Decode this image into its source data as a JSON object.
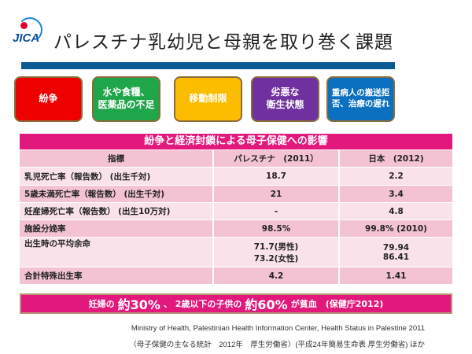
{
  "logo": "JICA",
  "title": "パレスチナ乳幼児と母親を取り巻く課題",
  "issues": [
    {
      "label": "紛争",
      "color": "#ee0000"
    },
    {
      "label": "水や食糧、\n医薬品の不足",
      "color": "#1fa64a"
    },
    {
      "label": "移動制限",
      "color": "#fcbd00"
    },
    {
      "label": "劣悪な\n衛生状態",
      "color": "#7030a0"
    },
    {
      "label": "重病人の搬送拒\n否、治療の遅れ",
      "color": "#0b70c0"
    }
  ],
  "table": {
    "title": "紛争と経済封鎖による母子保健への影響",
    "headers": [
      "指標",
      "パレスチナ　(2011）",
      "日本　(2012)"
    ],
    "rows": [
      [
        "乳児死亡率（報告数） (出生千対)",
        "18.7",
        "2.2"
      ],
      [
        "5歳未満死亡率（報告数） (出生千対)",
        "21",
        "3.4"
      ],
      [
        "妊産婦死亡率（報告数） (出生10万対)",
        "-",
        "4.8"
      ],
      [
        "施設分娩率",
        "98.5%",
        "99.8% (2010)"
      ],
      [
        "出生時の平均余命",
        "71.7(男性)\n73.2(女性)",
        "79.94\n86.41"
      ],
      [
        "合計特殊出生率",
        "4.2",
        "1.41"
      ]
    ]
  },
  "banner": {
    "p1": "妊婦の",
    "p2": "約30%",
    "p3": "、 2歳以下の子供の",
    "p4": "約60%",
    "p5": "が貧血　(保健庁2012)"
  },
  "footnotes": [
    "Ministry of Health, Palestinian Health Information Center, Health Status in Palestine 2011",
    "（母子保健の主なる統計　2012年　厚生労働省）(平成24年簡易生命表 厚生労働省) ほか"
  ]
}
